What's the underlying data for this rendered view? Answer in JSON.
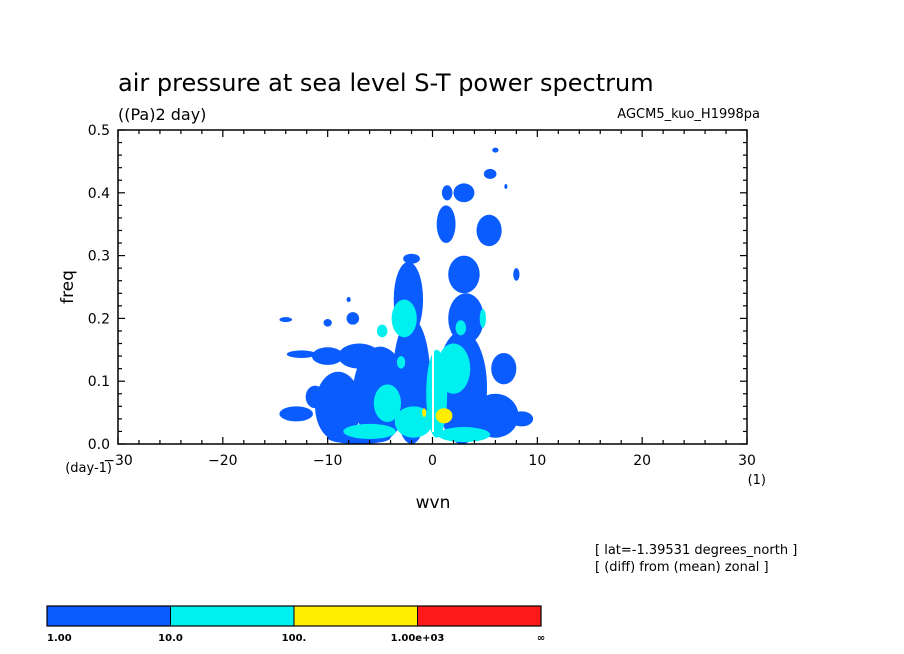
{
  "chart_data": {
    "type": "heatmap",
    "title": "air pressure at sea level S-T power spectrum",
    "units": "((Pa)2 day)",
    "model": "AGCM5_kuo_H1998pa",
    "xlabel": "wvn",
    "ylabel": "freq",
    "x_unit": "(1)",
    "y_unit": "(day-1)",
    "xlim": [
      -30,
      30
    ],
    "ylim": [
      0,
      0.5
    ],
    "x_ticks": [
      -30,
      -20,
      -10,
      0,
      10,
      20,
      30
    ],
    "y_ticks": [
      0.0,
      0.1,
      0.2,
      0.3,
      0.4,
      0.5
    ],
    "x_tick_labels": [
      "-30",
      "-20",
      "-10",
      "0",
      "10",
      "20",
      "30"
    ],
    "y_tick_labels": [
      "0.0",
      "0.1",
      "0.2",
      "0.3",
      "0.4",
      "0.5"
    ],
    "annotations": [
      "[ lat=-1.39531 degrees_north ]",
      "[ (diff) from (mean) zonal ]"
    ],
    "colorbar": {
      "levels": [
        1,
        10,
        100,
        1000
      ],
      "labels": [
        "1.00",
        "10.0",
        "100.",
        "1.00e+03",
        "∞"
      ],
      "colors": [
        "#0a5cff",
        "#00f0f0",
        "#ffee00",
        "#ff1a1a"
      ]
    },
    "regions": [
      {
        "level": 1,
        "x": -9,
        "y": 0.06,
        "rx": 2.2,
        "ry": 0.055
      },
      {
        "level": 1,
        "x": -5,
        "y": 0.08,
        "rx": 2.6,
        "ry": 0.075
      },
      {
        "level": 1,
        "x": -2,
        "y": 0.1,
        "rx": 1.8,
        "ry": 0.1
      },
      {
        "level": 1,
        "x": -2.3,
        "y": 0.23,
        "rx": 1.4,
        "ry": 0.06
      },
      {
        "level": 1,
        "x": -2,
        "y": 0.295,
        "rx": 0.8,
        "ry": 0.008
      },
      {
        "level": 1,
        "x": 2.8,
        "y": 0.09,
        "rx": 2.4,
        "ry": 0.09
      },
      {
        "level": 1,
        "x": 3.2,
        "y": 0.2,
        "rx": 1.7,
        "ry": 0.04
      },
      {
        "level": 1,
        "x": 3,
        "y": 0.27,
        "rx": 1.5,
        "ry": 0.03
      },
      {
        "level": 1,
        "x": 1.3,
        "y": 0.35,
        "rx": 0.9,
        "ry": 0.03
      },
      {
        "level": 1,
        "x": 5.4,
        "y": 0.34,
        "rx": 1.2,
        "ry": 0.025
      },
      {
        "level": 1,
        "x": 3,
        "y": 0.4,
        "rx": 1,
        "ry": 0.015
      },
      {
        "level": 1,
        "x": 1.4,
        "y": 0.4,
        "rx": 0.5,
        "ry": 0.012
      },
      {
        "level": 1,
        "x": 6,
        "y": 0.045,
        "rx": 2.2,
        "ry": 0.035
      },
      {
        "level": 1,
        "x": 8.5,
        "y": 0.04,
        "rx": 1.1,
        "ry": 0.012
      },
      {
        "level": 1,
        "x": 6.8,
        "y": 0.12,
        "rx": 1.2,
        "ry": 0.025
      },
      {
        "level": 1,
        "x": -13,
        "y": 0.048,
        "rx": 1.6,
        "ry": 0.012
      },
      {
        "level": 1,
        "x": -11.2,
        "y": 0.075,
        "rx": 0.9,
        "ry": 0.018
      },
      {
        "level": 1,
        "x": -10,
        "y": 0.14,
        "rx": 1.5,
        "ry": 0.014
      },
      {
        "level": 1,
        "x": -12.5,
        "y": 0.143,
        "rx": 1.4,
        "ry": 0.006
      },
      {
        "level": 1,
        "x": -7,
        "y": 0.14,
        "rx": 2,
        "ry": 0.02
      },
      {
        "level": 1,
        "x": -7.6,
        "y": 0.2,
        "rx": 0.6,
        "ry": 0.01
      },
      {
        "level": 1,
        "x": -14,
        "y": 0.198,
        "rx": 0.6,
        "ry": 0.004
      },
      {
        "level": 1,
        "x": -10,
        "y": 0.193,
        "rx": 0.4,
        "ry": 0.006
      },
      {
        "level": 1,
        "x": -8,
        "y": 0.23,
        "rx": 0.2,
        "ry": 0.004
      },
      {
        "level": 1,
        "x": 8,
        "y": 0.27,
        "rx": 0.3,
        "ry": 0.01
      },
      {
        "level": 1,
        "x": 5.5,
        "y": 0.43,
        "rx": 0.6,
        "ry": 0.008
      },
      {
        "level": 1,
        "x": 6,
        "y": 0.468,
        "rx": 0.3,
        "ry": 0.004
      },
      {
        "level": 1,
        "x": 7,
        "y": 0.41,
        "rx": 0.15,
        "ry": 0.004
      },
      {
        "level": 1,
        "x": -7,
        "y": 0.01,
        "rx": 3,
        "ry": 0.01
      },
      {
        "level": 10,
        "x": -4.3,
        "y": 0.065,
        "rx": 1.3,
        "ry": 0.03
      },
      {
        "level": 10,
        "x": -1.8,
        "y": 0.035,
        "rx": 1.8,
        "ry": 0.025
      },
      {
        "level": 10,
        "x": -6,
        "y": 0.02,
        "rx": 2.5,
        "ry": 0.012
      },
      {
        "level": 10,
        "x": 0.4,
        "y": 0.08,
        "rx": 1,
        "ry": 0.07
      },
      {
        "level": 10,
        "x": 2,
        "y": 0.12,
        "rx": 1.6,
        "ry": 0.04
      },
      {
        "level": 10,
        "x": 3,
        "y": 0.015,
        "rx": 2.5,
        "ry": 0.012
      },
      {
        "level": 10,
        "x": -2.7,
        "y": 0.2,
        "rx": 1.2,
        "ry": 0.03
      },
      {
        "level": 10,
        "x": -4.8,
        "y": 0.18,
        "rx": 0.5,
        "ry": 0.01
      },
      {
        "level": 10,
        "x": -3,
        "y": 0.13,
        "rx": 0.4,
        "ry": 0.01
      },
      {
        "level": 10,
        "x": 2.7,
        "y": 0.185,
        "rx": 0.5,
        "ry": 0.012
      },
      {
        "level": 10,
        "x": 4.8,
        "y": 0.2,
        "rx": 0.3,
        "ry": 0.015
      },
      {
        "level": 100,
        "x": 1.1,
        "y": 0.045,
        "rx": 0.8,
        "ry": 0.012
      },
      {
        "level": 100,
        "x": -0.8,
        "y": 0.05,
        "rx": 0.2,
        "ry": 0.007
      }
    ]
  }
}
